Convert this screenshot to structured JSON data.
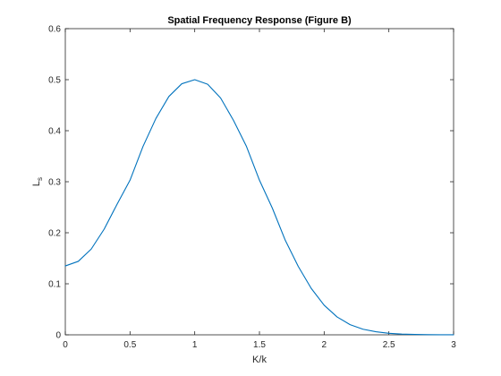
{
  "chart_data": {
    "type": "line",
    "title": "Spatial Frequency Response (Figure B)",
    "xlabel": "K/k",
    "ylabel": "L",
    "ylabel_subscript": "s",
    "xlim": [
      0,
      3
    ],
    "ylim": [
      0,
      0.6
    ],
    "xticks": [
      0,
      0.5,
      1,
      1.5,
      2,
      2.5,
      3
    ],
    "xtick_labels": [
      "0",
      "0.5",
      "1",
      "1.5",
      "2",
      "2.5",
      "3"
    ],
    "yticks": [
      0,
      0.1,
      0.2,
      0.3,
      0.4,
      0.5,
      0.6
    ],
    "ytick_labels": [
      "0",
      "0.1",
      "0.2",
      "0.3",
      "0.4",
      "0.5",
      "0.6"
    ],
    "grid": false,
    "legend": "none",
    "line_color": "#0072BD",
    "series": [
      {
        "x": [
          0,
          0.1,
          0.2,
          0.3,
          0.4,
          0.5,
          0.6,
          0.7,
          0.8,
          0.9,
          1.0,
          1.1,
          1.2,
          1.3,
          1.4,
          1.5,
          1.6,
          1.7,
          1.8,
          1.9,
          2.0,
          2.1,
          2.2,
          2.3,
          2.4,
          2.5,
          2.6,
          2.7,
          2.8,
          2.9,
          3.0
        ],
        "y": [
          0.135,
          0.144,
          0.168,
          0.207,
          0.256,
          0.303,
          0.369,
          0.424,
          0.467,
          0.492,
          0.5,
          0.491,
          0.464,
          0.42,
          0.369,
          0.303,
          0.248,
          0.185,
          0.134,
          0.091,
          0.058,
          0.035,
          0.02,
          0.011,
          0.006,
          0.003,
          0.0015,
          0.0007,
          0.0003,
          0.0001,
          5e-05
        ]
      }
    ]
  }
}
